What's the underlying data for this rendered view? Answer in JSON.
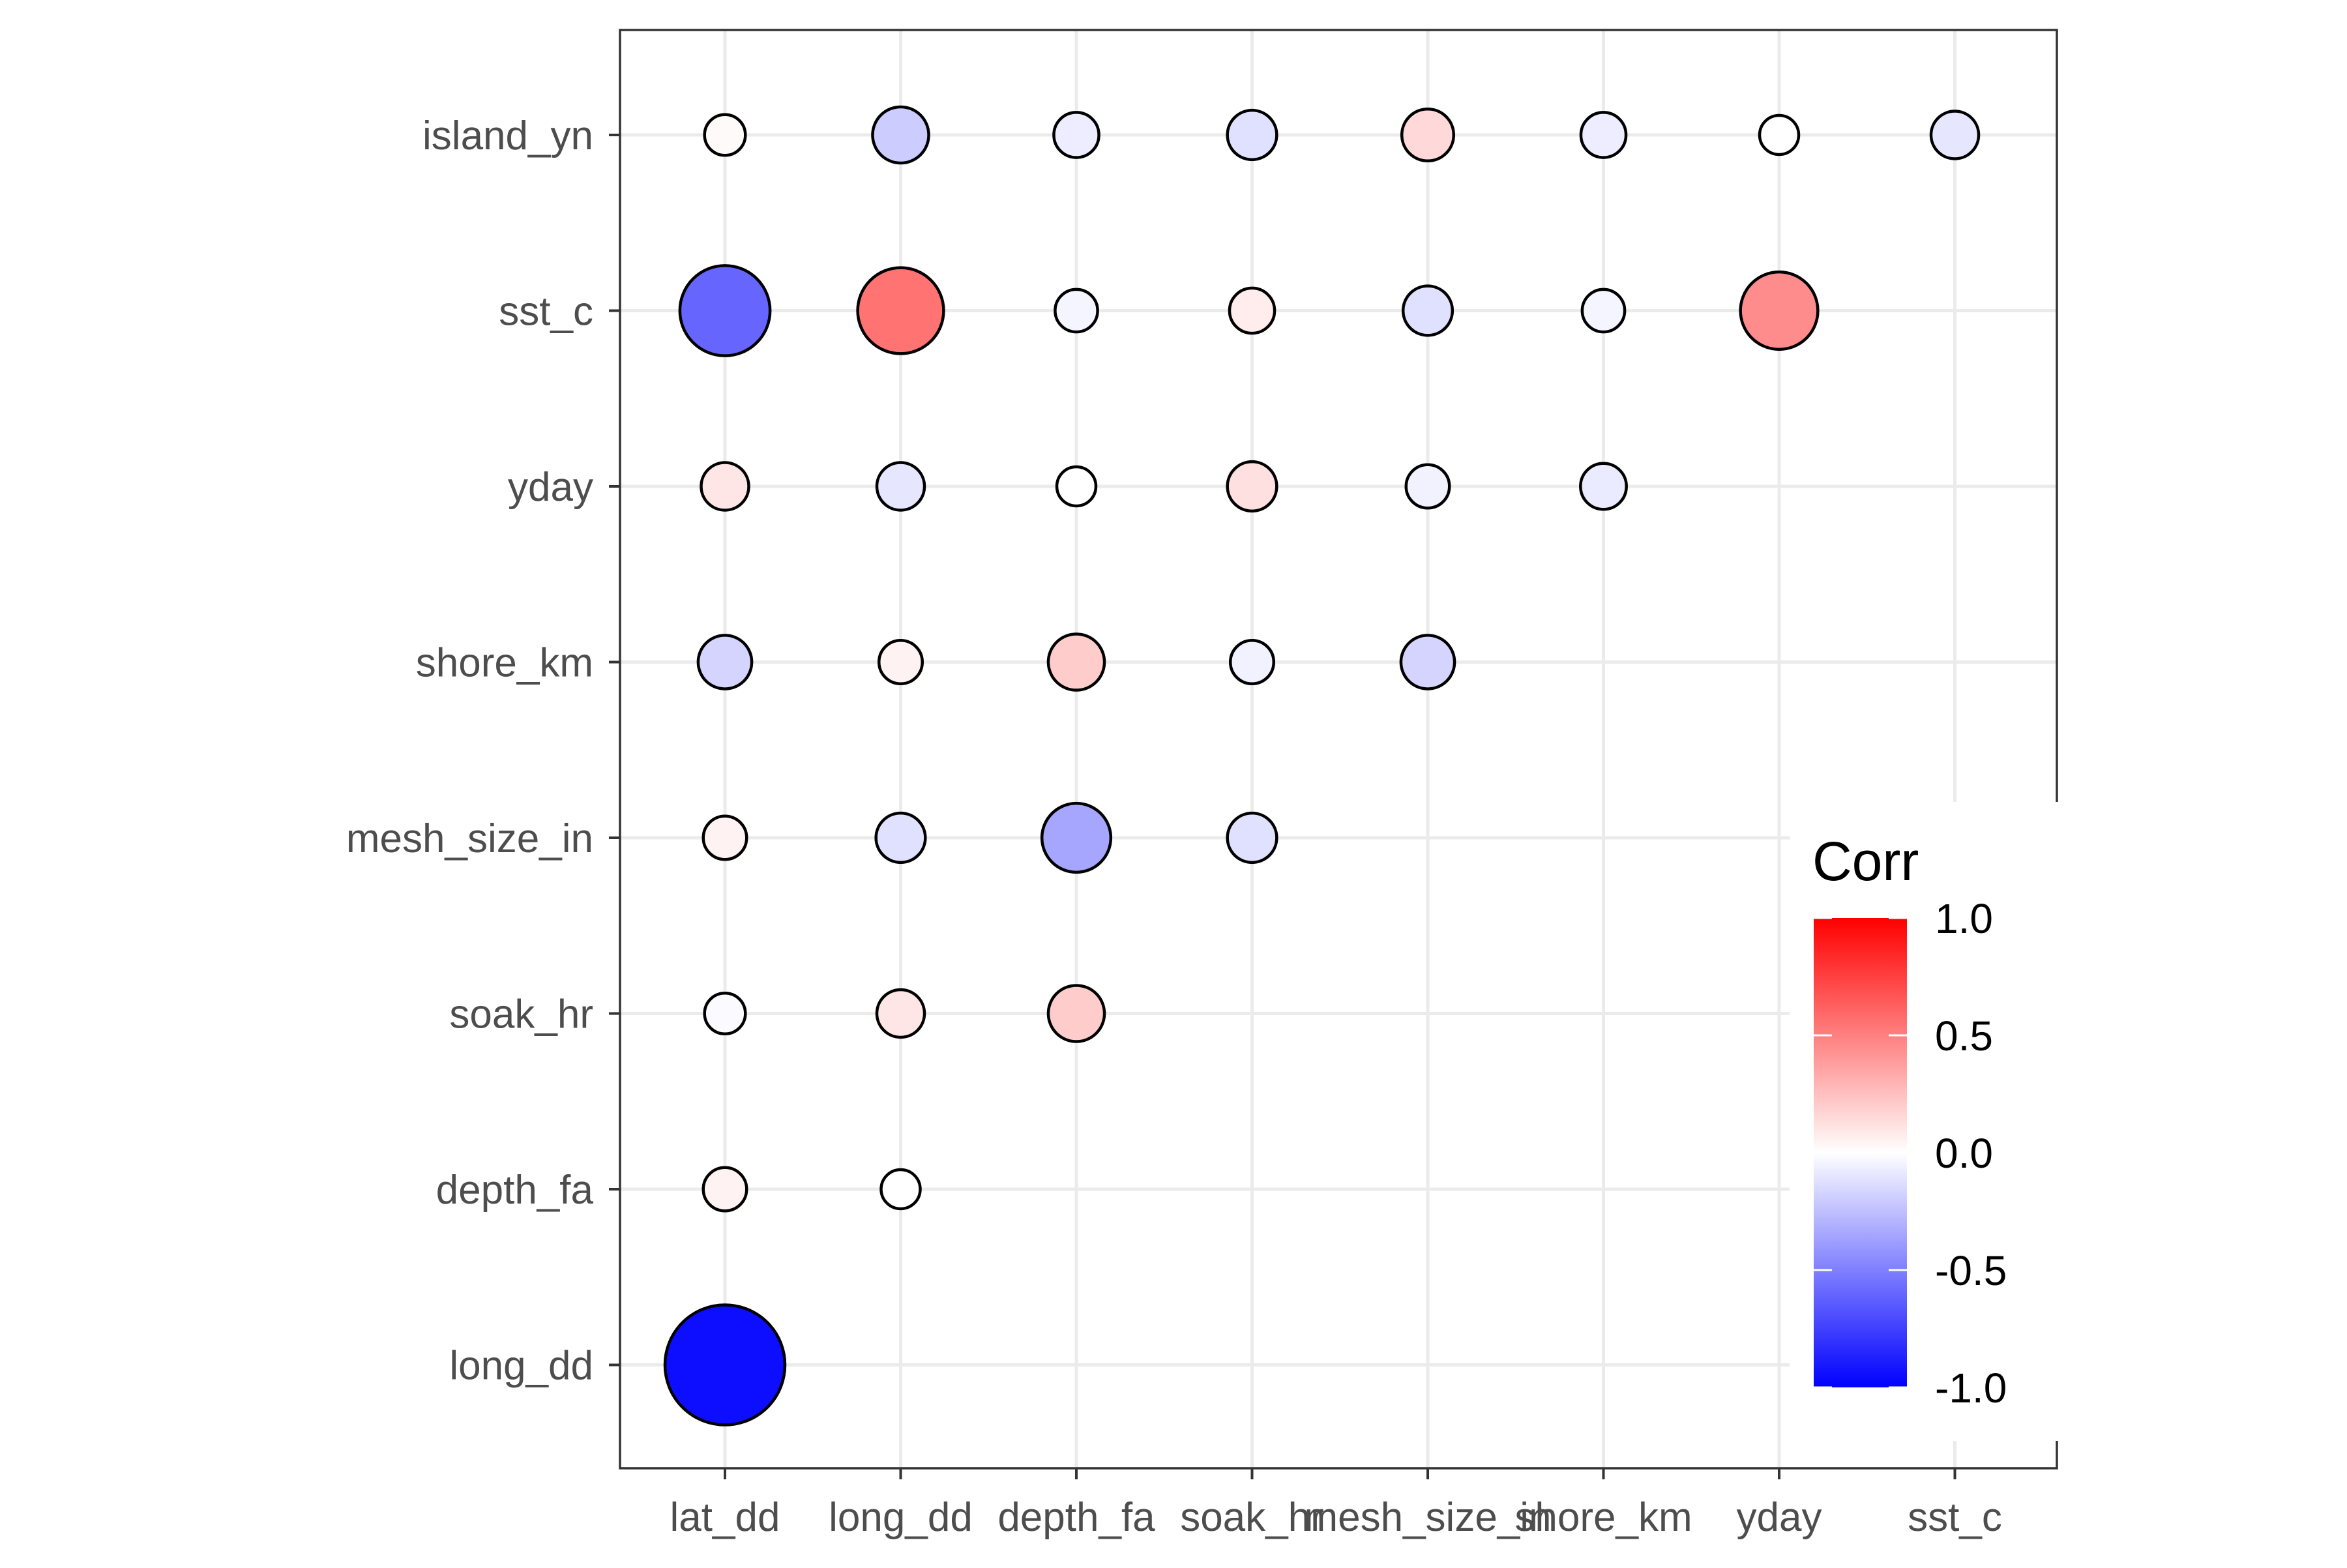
{
  "chart_data": {
    "type": "heatmap",
    "mark": "circle",
    "x_categories": [
      "lat_dd",
      "long_dd",
      "depth_fa",
      "soak_hr",
      "mesh_size_in",
      "shore_km",
      "yday",
      "sst_c"
    ],
    "y_categories": [
      "long_dd",
      "depth_fa",
      "soak_hr",
      "mesh_size_in",
      "shore_km",
      "yday",
      "sst_c",
      "island_yn"
    ],
    "cells": [
      {
        "x": "lat_dd",
        "y": "long_dd",
        "value": -0.95
      },
      {
        "x": "lat_dd",
        "y": "depth_fa",
        "value": 0.05
      },
      {
        "x": "long_dd",
        "y": "depth_fa",
        "value": 0.0
      },
      {
        "x": "lat_dd",
        "y": "soak_hr",
        "value": -0.02
      },
      {
        "x": "long_dd",
        "y": "soak_hr",
        "value": 0.1
      },
      {
        "x": "depth_fa",
        "y": "soak_hr",
        "value": 0.2
      },
      {
        "x": "lat_dd",
        "y": "mesh_size_in",
        "value": 0.05
      },
      {
        "x": "long_dd",
        "y": "mesh_size_in",
        "value": -0.12
      },
      {
        "x": "depth_fa",
        "y": "mesh_size_in",
        "value": -0.35
      },
      {
        "x": "soak_hr",
        "y": "mesh_size_in",
        "value": -0.12
      },
      {
        "x": "lat_dd",
        "y": "shore_km",
        "value": -0.17
      },
      {
        "x": "long_dd",
        "y": "shore_km",
        "value": 0.05
      },
      {
        "x": "depth_fa",
        "y": "shore_km",
        "value": 0.2
      },
      {
        "x": "soak_hr",
        "y": "shore_km",
        "value": -0.05
      },
      {
        "x": "mesh_size_in",
        "y": "shore_km",
        "value": -0.17
      },
      {
        "x": "lat_dd",
        "y": "yday",
        "value": 0.1
      },
      {
        "x": "long_dd",
        "y": "yday",
        "value": -0.1
      },
      {
        "x": "depth_fa",
        "y": "yday",
        "value": 0.0
      },
      {
        "x": "soak_hr",
        "y": "yday",
        "value": 0.12
      },
      {
        "x": "mesh_size_in",
        "y": "yday",
        "value": -0.05
      },
      {
        "x": "shore_km",
        "y": "yday",
        "value": -0.08
      },
      {
        "x": "lat_dd",
        "y": "sst_c",
        "value": -0.6
      },
      {
        "x": "long_dd",
        "y": "sst_c",
        "value": 0.55
      },
      {
        "x": "depth_fa",
        "y": "sst_c",
        "value": -0.04
      },
      {
        "x": "soak_hr",
        "y": "sst_c",
        "value": 0.07
      },
      {
        "x": "mesh_size_in",
        "y": "sst_c",
        "value": -0.12
      },
      {
        "x": "shore_km",
        "y": "sst_c",
        "value": -0.04
      },
      {
        "x": "yday",
        "y": "sst_c",
        "value": 0.45
      },
      {
        "x": "lat_dd",
        "y": "island_yn",
        "value": 0.02
      },
      {
        "x": "long_dd",
        "y": "island_yn",
        "value": -0.2
      },
      {
        "x": "depth_fa",
        "y": "island_yn",
        "value": -0.07
      },
      {
        "x": "soak_hr",
        "y": "island_yn",
        "value": -0.12
      },
      {
        "x": "mesh_size_in",
        "y": "island_yn",
        "value": 0.15
      },
      {
        "x": "shore_km",
        "y": "island_yn",
        "value": -0.07
      },
      {
        "x": "yday",
        "y": "island_yn",
        "value": 0.0
      },
      {
        "x": "sst_c",
        "y": "island_yn",
        "value": -0.1
      }
    ],
    "legend": {
      "title": "Corr",
      "position": "bottom-right inside",
      "ticks": [
        {
          "value": 1.0,
          "label": "1.0"
        },
        {
          "value": 0.5,
          "label": "0.5"
        },
        {
          "value": 0.0,
          "label": "0.0"
        },
        {
          "value": -0.5,
          "label": "-0.5"
        },
        {
          "value": -1.0,
          "label": "-1.0"
        }
      ],
      "range": [
        -1,
        1
      ],
      "colors": {
        "low": "#0000ff",
        "mid": "#ffffff",
        "high": "#ff0000"
      }
    },
    "grid": true,
    "panel_border": true,
    "colors": {
      "grid": "#ebebeb",
      "border": "#333333",
      "circle_stroke": "#000000",
      "tick_text": "#4d4d4d"
    }
  }
}
